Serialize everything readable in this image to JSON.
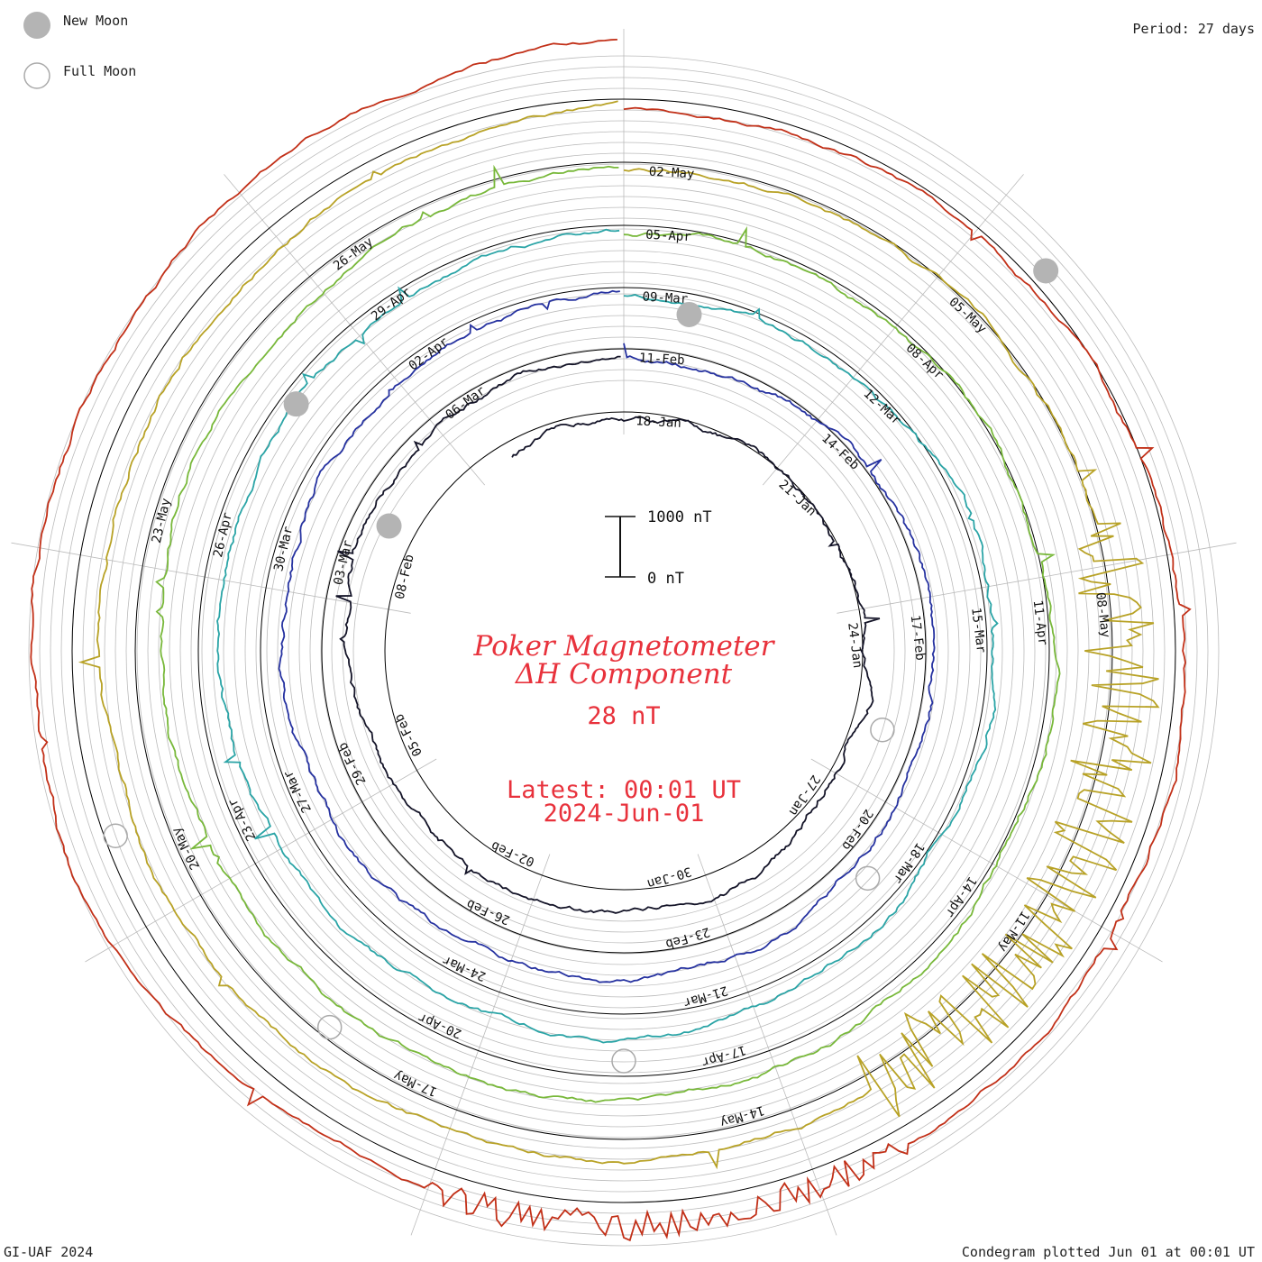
{
  "legend": {
    "new_moon_label": "New Moon",
    "full_moon_label": "Full Moon"
  },
  "period_label": "Period: 27 days",
  "footer": {
    "left": "GI-UAF 2024",
    "right": "Condegram plotted Jun 01 at 00:01 UT"
  },
  "scale": {
    "top_label": "1000 nT",
    "bottom_label": "0 nT"
  },
  "title": {
    "line1": "Poker Magnetometer",
    "line2": "ΔH Component",
    "value": "28 nT",
    "latest_line1": "Latest: 00:01 UT",
    "latest_line2": "2024-Jun-01"
  },
  "colors": {
    "title": "#e8323c",
    "grid": "#bbbbbb",
    "moon_new_fill": "#b4b4b4",
    "moon_full_stroke": "#aaaaaa"
  },
  "chart_data": {
    "type": "line",
    "title": "Poker Magnetometer ΔH Component",
    "period_days": 27,
    "units": "nT",
    "rings": [
      {
        "name": "Jan",
        "color": "#141428",
        "dates": [
          "18-Jan",
          "21-Jan",
          "24-Jan",
          "27-Jan",
          "30-Jan",
          "02-Feb",
          "05-Feb",
          "08-Feb"
        ]
      },
      {
        "name": "Feb",
        "color": "#2632a0",
        "dates": [
          "11-Feb",
          "14-Feb",
          "17-Feb",
          "20-Feb",
          "23-Feb",
          "26-Feb",
          "29-Feb",
          "03-Mar",
          "06-Mar"
        ]
      },
      {
        "name": "Mar",
        "color": "#2aa4a6",
        "dates": [
          "09-Mar",
          "12-Mar",
          "15-Mar",
          "18-Mar",
          "21-Mar",
          "24-Mar",
          "27-Mar",
          "30-Mar",
          "02-Apr"
        ]
      },
      {
        "name": "Apr-a",
        "color": "#78b83a",
        "dates": [
          "05-Apr",
          "08-Apr",
          "11-Apr",
          "14-Apr",
          "17-Apr",
          "20-Apr",
          "23-Apr",
          "26-Apr",
          "29-Apr"
        ]
      },
      {
        "name": "Apr-b",
        "color": "#b8a226",
        "dates": [
          "02-May",
          "05-May",
          "08-May",
          "11-May",
          "14-May",
          "17-May",
          "20-May",
          "23-May",
          "26-May"
        ]
      },
      {
        "name": "May",
        "color": "#c23018",
        "dates": []
      }
    ],
    "storm_annotation": "11-May"
  }
}
